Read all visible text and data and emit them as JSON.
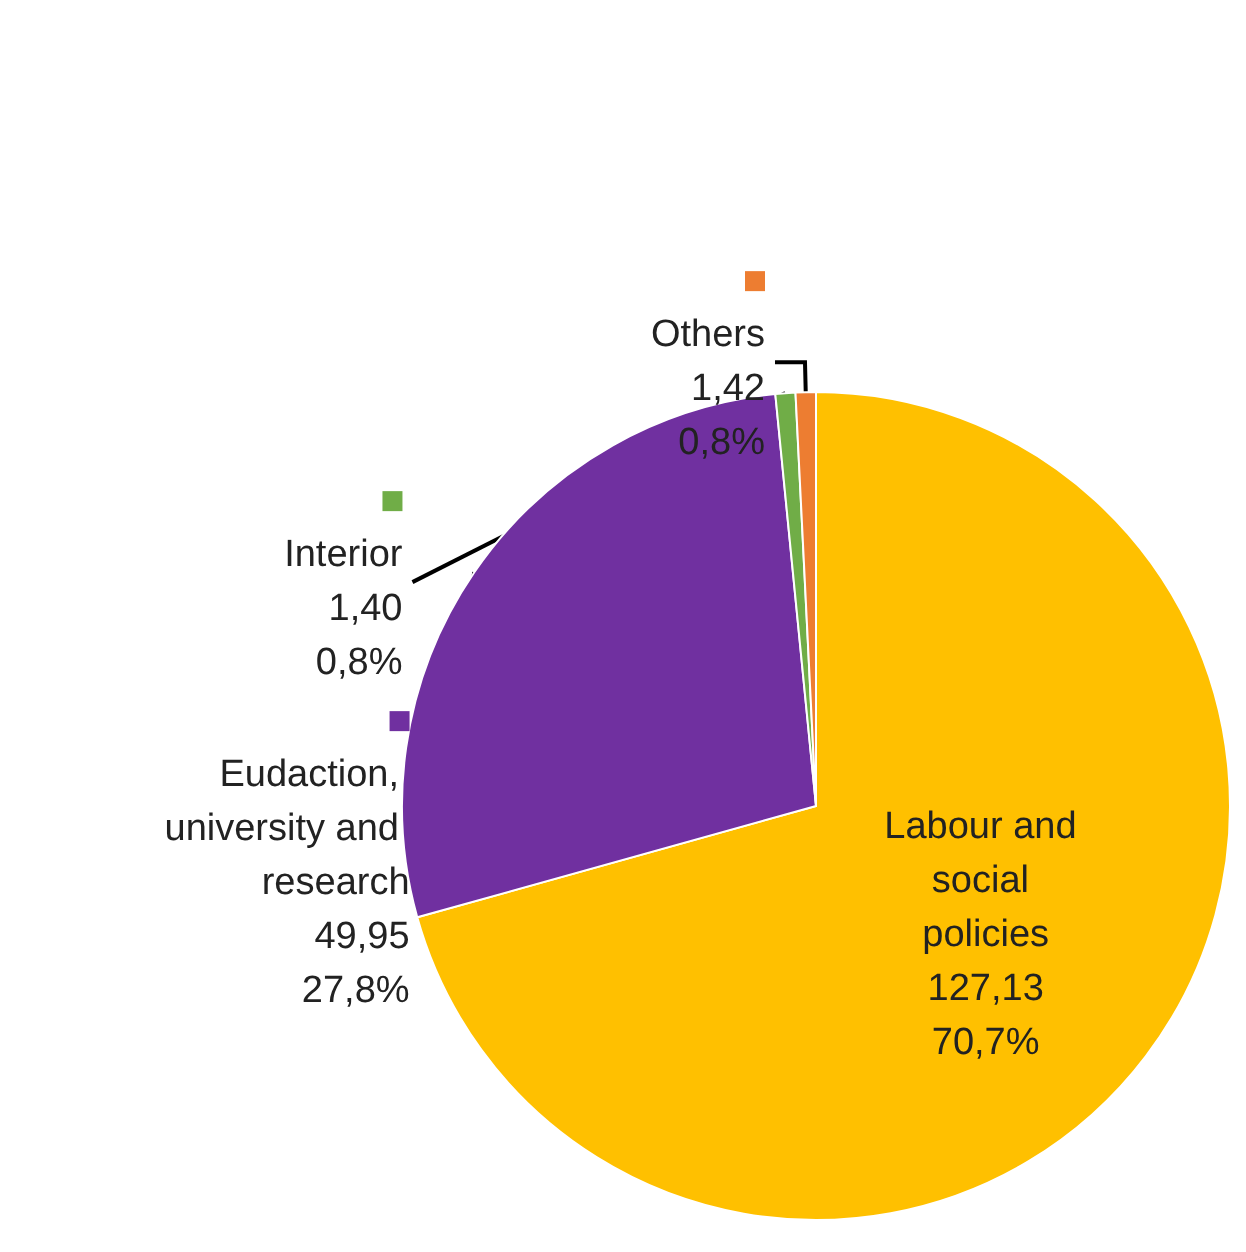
{
  "chart_data": {
    "type": "pie",
    "categories": [
      "Labour and social policies",
      "Eudaction, university and research",
      "Interior",
      "Others"
    ],
    "values": [
      127.13,
      49.95,
      1.4,
      1.42
    ],
    "colors": [
      "#ffc000",
      "#7030a0",
      "#70ad47",
      "#ed7d31"
    ],
    "value_labels": [
      "127,13\n70,7%",
      "49,95\n27,8%",
      "1,40\n0,8%",
      "1,42\n0,8%"
    ],
    "legend": "top left"
  }
}
